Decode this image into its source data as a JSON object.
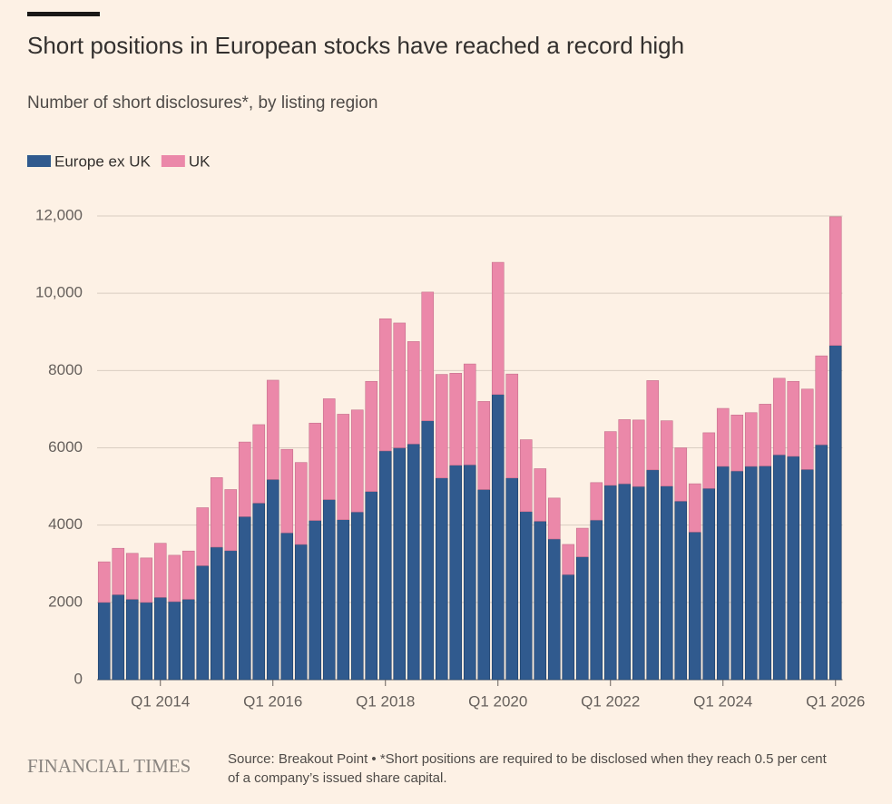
{
  "chart_data": {
    "type": "bar",
    "stacked": true,
    "title": "Short positions in European stocks have reached a record high",
    "subtitle": "Number of short disclosures*, by listing region",
    "brand": "FINANCIAL TIMES",
    "source": [
      "Source: Breakout Point • *Short positions are required to be disclosed when they reach 0.5 per cent",
      "of a company’s issued share capital."
    ],
    "categories": [
      null,
      null,
      null,
      null,
      "Q1 2014",
      null,
      null,
      null,
      null,
      null,
      null,
      null,
      "Q1 2016",
      null,
      null,
      null,
      null,
      null,
      null,
      null,
      "Q1 2018",
      null,
      null,
      null,
      null,
      null,
      null,
      null,
      "Q1 2020",
      null,
      null,
      null,
      null,
      null,
      null,
      null,
      "Q1 2022",
      null,
      null,
      null,
      null,
      null,
      null,
      null,
      "Q1 2024",
      null,
      null,
      null,
      null,
      null,
      null,
      null,
      "Q1 2026"
    ],
    "series": [
      {
        "name": "Europe ex UK",
        "color": "#305a8e",
        "values": [
          2000,
          2200,
          2080,
          2000,
          2130,
          2020,
          2080,
          2950,
          3430,
          3340,
          4220,
          4570,
          5180,
          3800,
          3500,
          4120,
          4660,
          4140,
          4340,
          4870,
          5920,
          6000,
          6100,
          6700,
          5220,
          5550,
          5560,
          4920,
          7380,
          5220,
          4350,
          4100,
          3640,
          2720,
          3180,
          4130,
          5030,
          5070,
          5000,
          5430,
          5010,
          4620,
          3820,
          4950,
          5520,
          5400,
          5520,
          5530,
          5820,
          5780,
          5440,
          6080,
          8650
        ]
      },
      {
        "name": "UK",
        "color": "#eb88a9",
        "values": [
          1050,
          1200,
          1190,
          1150,
          1400,
          1200,
          1250,
          1500,
          1800,
          1580,
          1930,
          2030,
          2570,
          2160,
          2120,
          2520,
          2610,
          2730,
          2640,
          2850,
          3420,
          3230,
          2650,
          3330,
          2680,
          2380,
          2610,
          2280,
          3420,
          2690,
          1860,
          1360,
          1060,
          780,
          740,
          970,
          1390,
          1660,
          1720,
          2310,
          1690,
          1380,
          1250,
          1440,
          1500,
          1450,
          1390,
          1600,
          1980,
          1940,
          2080,
          2300,
          3330
        ]
      }
    ],
    "ylim": [
      0,
      12000
    ],
    "yticks": [
      0,
      2000,
      4000,
      6000,
      8000,
      {
        "value": 10000,
        "label": "10,000"
      },
      {
        "value": 12000,
        "label": "12,000"
      }
    ],
    "grid": true
  }
}
